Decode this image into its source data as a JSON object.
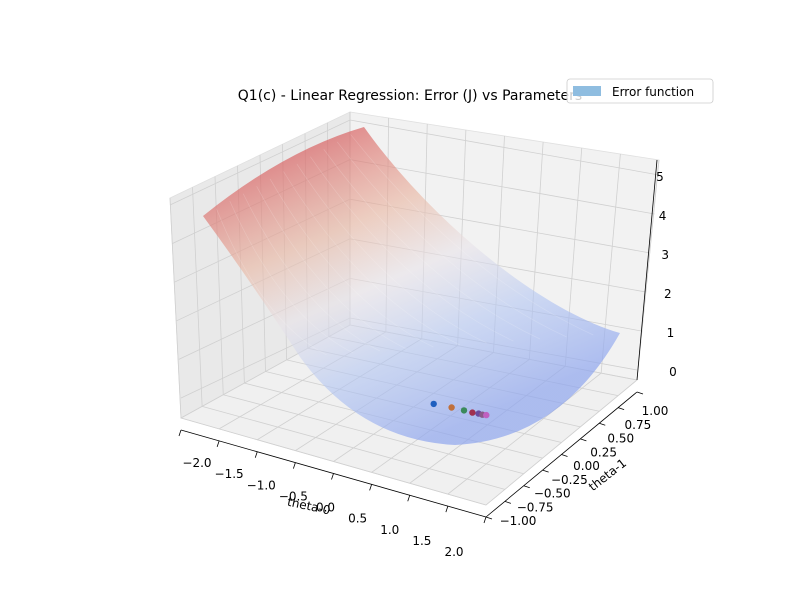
{
  "chart_data": {
    "type": "surface3d",
    "title": "Q1(c) - Linear Regression: Error (J) vs Parameters",
    "xlabel": "theta-0",
    "ylabel": "theta-1",
    "zlabel": "",
    "xlim": [
      -2.0,
      2.0
    ],
    "ylim": [
      -1.0,
      1.0
    ],
    "zlim": [
      0,
      5
    ],
    "x_ticks": [
      "−2.0",
      "−1.5",
      "−1.0",
      "−0.5",
      "0.0",
      "0.5",
      "1.0",
      "1.5",
      "2.0"
    ],
    "y_ticks": [
      "−1.00",
      "−0.75",
      "−0.50",
      "−0.25",
      "0.00",
      "0.25",
      "0.50",
      "0.75",
      "1.00"
    ],
    "z_ticks": [
      "0",
      "1",
      "2",
      "3",
      "4",
      "5"
    ],
    "grid": true,
    "legend": {
      "placement": "top-right",
      "entries": [
        {
          "label": "Error function",
          "color": "#8fbde0"
        }
      ]
    },
    "surface": {
      "name": "Error function",
      "colormap": "coolwarm",
      "alpha": 0.55,
      "corner_values": {
        "theta0_-2_theta1_-1": 4.3,
        "theta0_-2_theta1_1": 5.2,
        "theta0_2_theta1_-1": 0.8,
        "theta0_2_theta1_1": 0.9
      },
      "minimum_approx": 0.0
    },
    "descent_points": [
      {
        "x": 0.15,
        "y": 0.05,
        "z": 0.1,
        "color": "#1f5fbf"
      },
      {
        "x": 0.33,
        "y": 0.1,
        "z": 0.05,
        "color": "#c0703c"
      },
      {
        "x": 0.47,
        "y": 0.12,
        "z": 0.03,
        "color": "#3a8a5a"
      },
      {
        "x": 0.57,
        "y": 0.13,
        "z": 0.02,
        "color": "#a03050"
      },
      {
        "x": 0.64,
        "y": 0.14,
        "z": 0.02,
        "color": "#6a4aa0"
      },
      {
        "x": 0.69,
        "y": 0.14,
        "z": 0.02,
        "color": "#8a5a8a"
      },
      {
        "x": 0.73,
        "y": 0.15,
        "z": 0.02,
        "color": "#c060c0"
      }
    ]
  }
}
